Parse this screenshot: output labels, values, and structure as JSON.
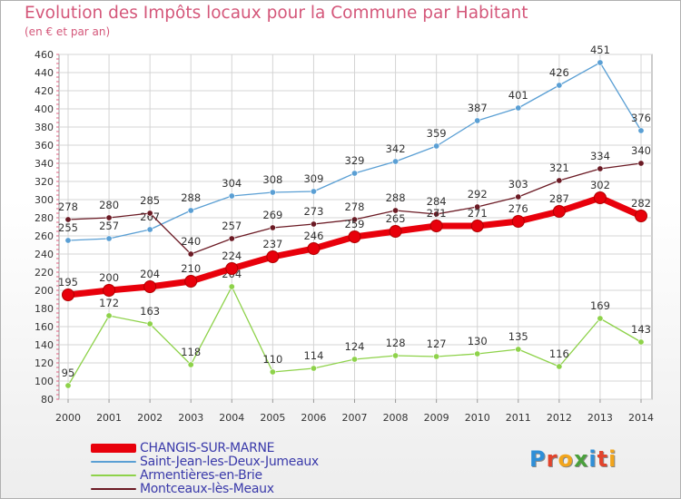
{
  "title": "Evolution des Impôts locaux pour la Commune par Habitant",
  "subtitle": "(en € et par an)",
  "logo": {
    "text": "Proxiti",
    "letters": [
      {
        "char": "P",
        "color": "#2f8fd8"
      },
      {
        "char": "r",
        "color": "#e2442c"
      },
      {
        "char": "o",
        "color": "#f2a51c"
      },
      {
        "char": "x",
        "color": "#4aa03c"
      },
      {
        "char": "i",
        "color": "#2f8fd8"
      },
      {
        "char": "t",
        "color": "#e2442c"
      },
      {
        "char": "i",
        "color": "#f2a51c"
      }
    ]
  },
  "chart_data": {
    "type": "line",
    "x": [
      "2000",
      "2001",
      "2002",
      "2003",
      "2004",
      "2005",
      "2006",
      "2007",
      "2008",
      "2009",
      "2010",
      "2011",
      "2012",
      "2013",
      "2014"
    ],
    "ylim": [
      80,
      460
    ],
    "yticks": [
      80,
      100,
      120,
      140,
      160,
      180,
      200,
      220,
      240,
      260,
      280,
      300,
      320,
      340,
      360,
      380,
      400,
      420,
      440,
      460
    ],
    "grid": true,
    "legend_position": "bottom-left",
    "series": [
      {
        "name": "CHANGIS-SUR-MARNE",
        "color": "#e8000b",
        "values": [
          195,
          200,
          204,
          210,
          224,
          237,
          246,
          259,
          265,
          271,
          271,
          276,
          287,
          302,
          282
        ]
      },
      {
        "name": "Saint-Jean-les-Deux-Jumeaux",
        "color": "#5a9fd4",
        "values": [
          255,
          257,
          267,
          288,
          304,
          308,
          309,
          329,
          342,
          359,
          387,
          401,
          426,
          451,
          376
        ]
      },
      {
        "name": "Armentières-en-Brie",
        "color": "#8ed24a",
        "values": [
          95,
          172,
          163,
          118,
          204,
          110,
          114,
          124,
          128,
          127,
          130,
          135,
          116,
          169,
          143
        ]
      },
      {
        "name": "Montceaux-lès-Meaux",
        "color": "#6b1a24",
        "values": [
          278,
          280,
          285,
          240,
          257,
          269,
          273,
          278,
          288,
          284,
          292,
          303,
          321,
          334,
          340
        ]
      }
    ]
  }
}
